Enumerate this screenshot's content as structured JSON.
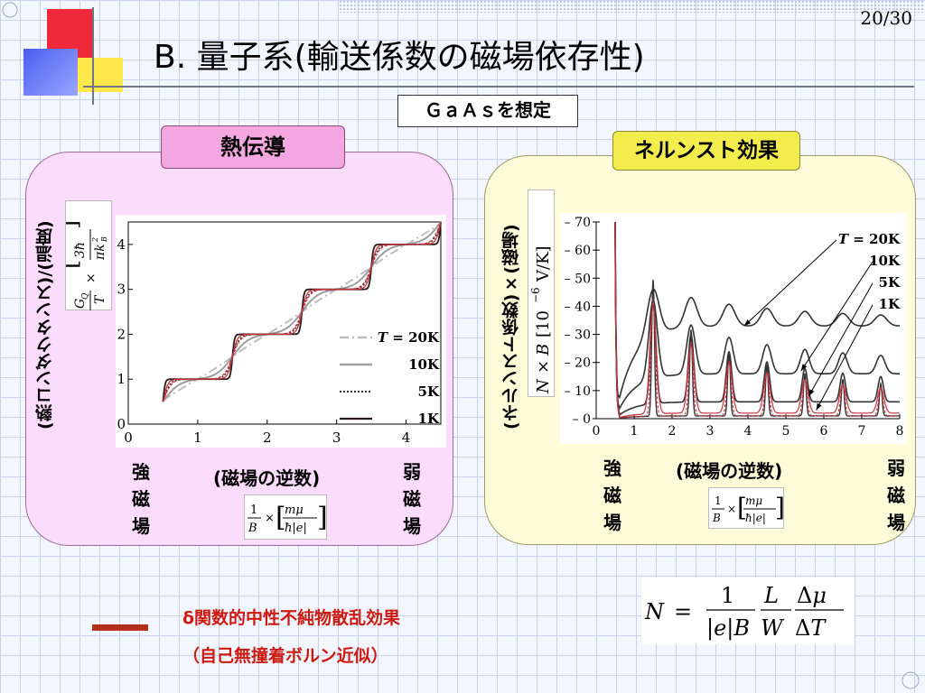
{
  "slide_number": "20/30",
  "title": "B. 量子系(輸送係数の磁場依存性)",
  "assumption_box": "ＧａＡｓを想定",
  "left_panel": {
    "tag": "熱伝導",
    "ylabel_jp": "(熱コンダクタンス)/(温度)",
    "ylabel_formula": "G_Q/T × [3ħ/πk_B²]",
    "xlabel_jp": "(磁場の逆数)",
    "xlabel_formula": "1/B × [mμ/ħ|e|]",
    "strong_field": "強磁場",
    "weak_field": "弱磁場"
  },
  "right_panel": {
    "tag": "ネルンスト効果",
    "ylabel_jp": "(ネルンスト係数)×(磁場)",
    "ylabel_formula": "N × B [10⁻⁶ V/K]",
    "xlabel_jp": "(磁場の逆数)",
    "xlabel_formula": "1/B × [mμ/ħ|e|]",
    "strong_field": "強磁場",
    "weak_field": "弱磁場"
  },
  "legend_note": {
    "line1": "δ関数的中性不純物散乱効果",
    "line2": "（自己無撞着ボルン近似）"
  },
  "nernst_formula": "N = 1/|e|B · L/W · Δμ/ΔT",
  "colors": {
    "left_panel_bg": "#fcdcfc",
    "right_panel_bg": "#fdfbd8",
    "left_tag": "#f3a6e0",
    "right_tag": "#f2ec4c",
    "note_red": "#cc1a10",
    "curve_red": "#c8323c"
  },
  "chart_data": [
    {
      "type": "line",
      "xlabel": "",
      "ylabel": "",
      "xlim": [
        0,
        4.5
      ],
      "ylim": [
        0,
        4.5
      ],
      "xticks": [
        "0",
        "1",
        "2",
        "3",
        "4"
      ],
      "yticks": [
        "0",
        "1",
        "2",
        "3",
        "4"
      ],
      "legend": {
        "placement": "bottom-right",
        "title_prefix": "T =",
        "entries": [
          "T = 20K",
          "10K",
          "5K",
          "1K"
        ]
      },
      "series": [
        {
          "name": "T = 20K",
          "style": "dash-dot",
          "color": "#bdbdbd",
          "description": "smooth nearly-linear rise",
          "values_at": [
            [
              0.5,
              0
            ],
            [
              1,
              0.9
            ],
            [
              2,
              2.0
            ],
            [
              3,
              3.0
            ],
            [
              4,
              4.0
            ],
            [
              4.5,
              4.5
            ]
          ]
        },
        {
          "name": "10K",
          "style": "solid",
          "color": "#9e9e9e"
        },
        {
          "name": "5K",
          "style": "dotted",
          "color": "#333333"
        },
        {
          "name": "1K",
          "style": "solid",
          "color": "#2a1a1a",
          "plateaus": [
            {
              "y": 1,
              "x": [
                0.55,
                1.35
              ]
            },
            {
              "y": 2,
              "x": [
                1.65,
                2.35
              ]
            },
            {
              "y": 3,
              "x": [
                2.65,
                3.35
              ]
            },
            {
              "y": 4,
              "x": [
                3.65,
                4.35
              ]
            }
          ]
        }
      ]
    },
    {
      "type": "line",
      "xlabel": "",
      "ylabel": "",
      "xlim": [
        0,
        8
      ],
      "ylim": [
        0,
        70
      ],
      "xticks": [
        "0",
        "1",
        "2",
        "3",
        "4",
        "5",
        "6",
        "7",
        "8"
      ],
      "yticks": [
        "0",
        "10",
        "20",
        "30",
        "40",
        "50",
        "60",
        "70"
      ],
      "legend": {
        "placement": "top-right",
        "title_prefix": "T =",
        "entries": [
          "T = 20K",
          "10K",
          "5K",
          "1K"
        ]
      },
      "series": [
        {
          "name": "T = 20K",
          "asymptote": 33
        },
        {
          "name": "10K",
          "asymptote": 17
        },
        {
          "name": "5K",
          "asymptote": 7
        },
        {
          "name": "1K",
          "peaks_at": [
            1.5,
            2.5,
            3.5,
            4.5,
            5.5,
            6.5,
            7.5
          ]
        }
      ]
    }
  ]
}
